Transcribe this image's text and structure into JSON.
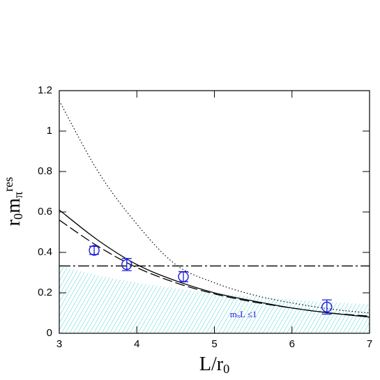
{
  "chart_data": {
    "type": "line",
    "xlim": [
      3,
      7
    ],
    "ylim": [
      0,
      1.2
    ],
    "xticks": [
      3,
      4,
      5,
      6,
      7
    ],
    "yticks": [
      0,
      0.2,
      0.4,
      0.6,
      0.8,
      1,
      1.2
    ],
    "xlabel": [
      {
        "text": "L/r"
      },
      {
        "text": "0",
        "pos": "sub"
      }
    ],
    "ylabel": [
      {
        "text": "r"
      },
      {
        "text": "0",
        "pos": "sub"
      },
      {
        "text": "m"
      },
      {
        "text": "π",
        "pos": "sub"
      },
      {
        "text": "res",
        "pos": "sup"
      }
    ],
    "region": {
      "x": [
        3,
        3.5,
        4,
        4.5,
        5,
        5.5,
        6,
        6.5,
        7
      ],
      "values": [
        0.333,
        0.286,
        0.25,
        0.222,
        0.2,
        0.182,
        0.167,
        0.154,
        0.143
      ],
      "color": "#4fd3d8",
      "label": [
        {
          "text": "m"
        },
        {
          "text": "π",
          "pos": "sub"
        },
        {
          "text": "L ≤1"
        }
      ],
      "label_color": "#1a1adc",
      "label_x": 5.2,
      "label_y": 0.09
    },
    "series": [
      {
        "style": "solid",
        "color": "#000",
        "x": [
          3,
          3.5,
          4,
          4.5,
          5,
          5.5,
          6,
          6.5,
          7
        ],
        "values": [
          0.61,
          0.46,
          0.34,
          0.26,
          0.2,
          0.16,
          0.125,
          0.1,
          0.08
        ]
      },
      {
        "style": "dashed",
        "color": "#000",
        "x": [
          3,
          3.5,
          4,
          4.5,
          5,
          5.5,
          6,
          6.5,
          7
        ],
        "values": [
          0.56,
          0.43,
          0.325,
          0.25,
          0.195,
          0.155,
          0.125,
          0.1,
          0.085
        ]
      },
      {
        "style": "dotted",
        "color": "#000",
        "x": [
          3,
          3.5,
          4,
          4.5,
          5,
          5.5,
          6,
          6.5,
          7
        ],
        "values": [
          1.15,
          0.8,
          0.54,
          0.34,
          0.25,
          0.19,
          0.15,
          0.12,
          0.1
        ]
      },
      {
        "style": "dashdot",
        "color": "#000",
        "x": [
          3,
          7
        ],
        "values": [
          0.333,
          0.333
        ]
      },
      {
        "style": "errorbar",
        "color": "#1a1adc",
        "x": [
          3.45,
          3.87,
          4.6,
          6.45
        ],
        "values": [
          0.41,
          0.34,
          0.28,
          0.13
        ],
        "errors": [
          0.02,
          0.03,
          0.025,
          0.035
        ]
      }
    ]
  }
}
